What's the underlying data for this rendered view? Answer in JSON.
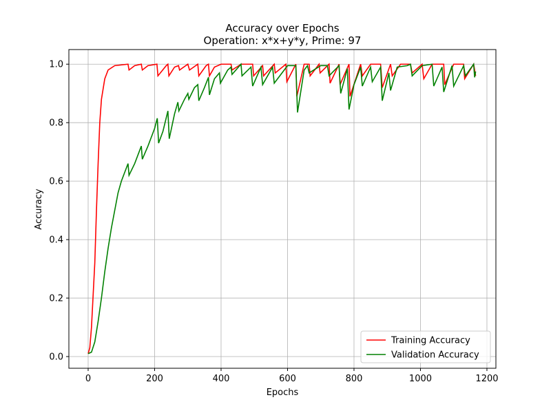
{
  "chart_data": {
    "type": "line",
    "title": "Accuracy over Epochs",
    "subtitle": "Operation: x*x+y*y, Prime: 97",
    "x_label": "Epochs",
    "y_label": "Accuracy",
    "xlim": [
      -58,
      1227
    ],
    "ylim": [
      -0.04,
      1.05
    ],
    "xticks": [
      0,
      200,
      400,
      600,
      800,
      1000,
      1200
    ],
    "yticks": [
      {
        "value": 0,
        "label": "0.0"
      },
      0.2,
      0.4,
      0.6,
      0.8,
      {
        "value": 1,
        "label": "1.0"
      }
    ],
    "grid": true,
    "legend": "lower right",
    "series": [
      {
        "name": "Training Accuracy",
        "color": "#ff0000",
        "x": [
          0,
          5,
          10,
          20,
          25,
          30,
          35,
          40,
          50,
          60,
          80,
          120,
          123,
          140,
          160,
          163,
          180,
          207,
          210,
          235,
          240,
          243,
          260,
          272,
          275,
          300,
          305,
          330,
          333,
          355,
          362,
          365,
          380,
          400,
          430,
          433,
          460,
          495,
          498,
          525,
          528,
          560,
          563,
          595,
          598,
          625,
          628,
          650,
          665,
          668,
          695,
          698,
          725,
          728,
          755,
          758,
          785,
          788,
          820,
          825,
          850,
          880,
          885,
          910,
          915,
          940,
          970,
          975,
          1005,
          1010,
          1035,
          1070,
          1073,
          1100,
          1130,
          1133,
          1160,
          1166
        ],
        "values": [
          0.01,
          0.03,
          0.1,
          0.32,
          0.5,
          0.66,
          0.8,
          0.88,
          0.95,
          0.98,
          0.995,
          1.0,
          0.98,
          0.995,
          1.0,
          0.98,
          0.995,
          1.0,
          0.96,
          0.995,
          1.0,
          0.96,
          0.99,
          0.995,
          0.98,
          1.0,
          0.98,
          1.0,
          0.96,
          0.995,
          1.0,
          0.96,
          0.99,
          1.0,
          1.0,
          0.98,
          1.0,
          1.0,
          0.96,
          0.995,
          0.96,
          1.0,
          0.97,
          1.0,
          0.94,
          1.0,
          0.89,
          1.0,
          1.0,
          0.96,
          1.0,
          0.97,
          1.0,
          0.935,
          1.0,
          0.93,
          1.0,
          0.89,
          1.0,
          0.96,
          1.0,
          1.0,
          0.92,
          1.0,
          0.96,
          1.0,
          1.0,
          0.97,
          1.0,
          0.95,
          1.0,
          1.0,
          0.93,
          1.0,
          1.0,
          0.95,
          1.0,
          0.96
        ]
      },
      {
        "name": "Validation Accuracy",
        "color": "#008000",
        "x": [
          0,
          10,
          20,
          30,
          40,
          50,
          60,
          70,
          80,
          90,
          100,
          110,
          120,
          123,
          140,
          160,
          163,
          180,
          200,
          208,
          212,
          225,
          240,
          244,
          260,
          270,
          273,
          290,
          300,
          303,
          320,
          330,
          333,
          350,
          362,
          365,
          380,
          395,
          398,
          420,
          430,
          433,
          460,
          463,
          490,
          495,
          520,
          525,
          555,
          560,
          600,
          625,
          630,
          650,
          660,
          665,
          700,
          720,
          725,
          755,
          760,
          780,
          785,
          800,
          820,
          825,
          850,
          855,
          880,
          885,
          905,
          910,
          930,
          960,
          970,
          975,
          1005,
          1035,
          1040,
          1065,
          1070,
          1095,
          1100,
          1130,
          1135,
          1160,
          1163,
          1166
        ],
        "values": [
          0.01,
          0.015,
          0.05,
          0.12,
          0.2,
          0.29,
          0.37,
          0.44,
          0.5,
          0.56,
          0.6,
          0.63,
          0.66,
          0.62,
          0.66,
          0.72,
          0.675,
          0.72,
          0.78,
          0.815,
          0.73,
          0.77,
          0.84,
          0.745,
          0.83,
          0.87,
          0.84,
          0.88,
          0.9,
          0.88,
          0.92,
          0.93,
          0.875,
          0.92,
          0.955,
          0.895,
          0.95,
          0.97,
          0.935,
          0.98,
          0.99,
          0.965,
          1.0,
          0.96,
          0.99,
          0.925,
          0.99,
          0.93,
          0.99,
          0.935,
          0.995,
          0.995,
          0.835,
          0.98,
          0.995,
          0.97,
          0.995,
          0.995,
          0.96,
          0.995,
          0.9,
          0.985,
          0.845,
          0.93,
          0.99,
          0.925,
          0.99,
          0.94,
          0.99,
          0.875,
          0.97,
          0.91,
          0.99,
          0.995,
          1.0,
          0.96,
          0.995,
          1.0,
          0.925,
          0.99,
          0.905,
          0.995,
          0.925,
          0.995,
          0.96,
          1.0,
          0.955,
          0.975
        ]
      }
    ]
  }
}
